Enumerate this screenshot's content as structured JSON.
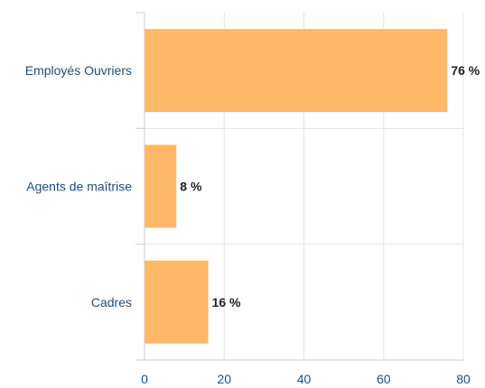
{
  "chart_data": {
    "type": "bar",
    "orientation": "horizontal",
    "categories": [
      "Employés Ouvriers",
      "Agents de maîtrise",
      "Cadres"
    ],
    "values": [
      76,
      8,
      16
    ],
    "value_labels": [
      "76 %",
      "8 %",
      "16 %"
    ],
    "title": "",
    "xlabel": "",
    "ylabel": "",
    "xlim": [
      0,
      80
    ],
    "xticks": [
      0,
      20,
      40,
      60,
      80
    ],
    "xtick_labels": [
      "0",
      "20",
      "40",
      "60",
      "80"
    ],
    "grid": true,
    "legend": "none",
    "colors": {
      "bar": "#ffb866",
      "grid": "#e3e3e3",
      "axis_text": "#1f4e79",
      "value_text": "#222222"
    }
  }
}
